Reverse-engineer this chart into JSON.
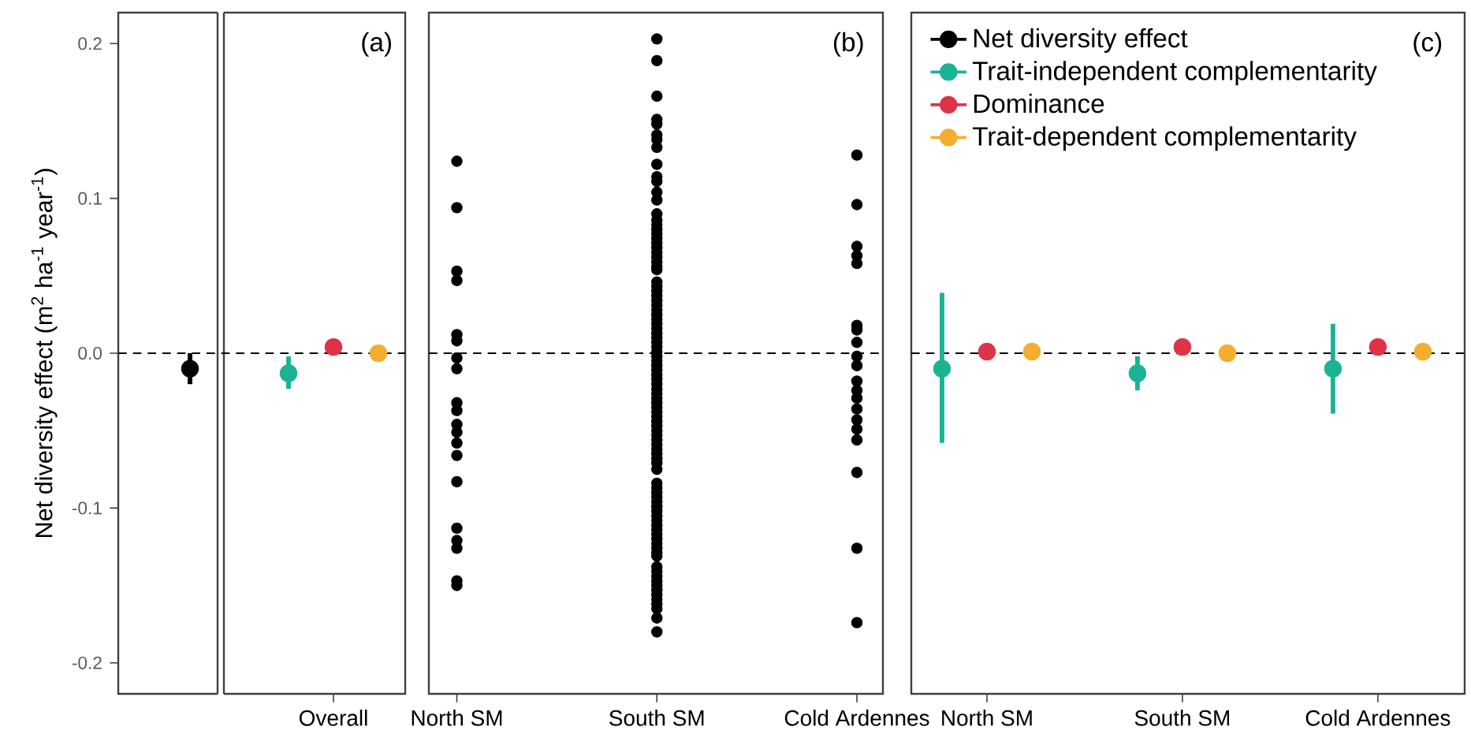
{
  "chart_data": [
    {
      "type": "scatter",
      "categories": [
        null,
        "Overall"
      ],
      "ylabel": "Net diversity effect (m$^{2}$ ha$^{-1}$ year$^{-1}$)",
      "ylim": [
        -0.22,
        0.22
      ],
      "yticks": [
        -0.2,
        -0.1,
        {
          "value": 0,
          "label": "0.0"
        },
        0.1,
        0.2
      ],
      "marker": "circle",
      "grid": false,
      "annotations": [
        "(a)"
      ],
      "ref_lines": [
        {
          "axis": "y",
          "value": 0,
          "line_style": "dashed",
          "color": "#000000"
        }
      ],
      "series": [
        {
          "color": "#000000",
          "values": [
            -0.01,
            null
          ],
          "errors": [
            [
              -0.02,
              0.0
            ],
            null
          ]
        },
        {
          "color": "#1ab394",
          "values": [
            null,
            -0.013
          ],
          "errors": [
            null,
            [
              -0.023,
              -0.002
            ]
          ]
        },
        {
          "color": "#e03347",
          "values": [
            null,
            0.004
          ]
        },
        {
          "color": "#f5ad2e",
          "values": [
            null,
            0.0
          ]
        }
      ]
    },
    {
      "type": "scatter",
      "categories": [
        "North SM",
        "South SM",
        "Cold Ardennes"
      ],
      "ylim": [
        -0.22,
        0.22
      ],
      "tick_labels": "x",
      "marker": "circle",
      "grid": false,
      "annotations": [
        "(b)"
      ],
      "ref_lines": [
        {
          "axis": "y",
          "value": 0,
          "line_style": "dashed",
          "color": "#000000"
        }
      ],
      "series": [
        {
          "color": "#000000",
          "x": [
            "North SM",
            "North SM",
            "North SM",
            "North SM",
            "North SM",
            "North SM",
            "North SM",
            "North SM",
            "North SM",
            "North SM",
            "North SM",
            "North SM",
            "North SM",
            "North SM",
            "North SM",
            "North SM",
            "North SM",
            "North SM",
            "North SM",
            "North SM"
          ],
          "values": [
            0.124,
            0.094,
            0.053,
            0.047,
            0.012,
            0.008,
            -0.003,
            -0.01,
            -0.032,
            -0.037,
            -0.046,
            -0.051,
            -0.058,
            -0.066,
            -0.083,
            -0.113,
            -0.121,
            -0.126,
            -0.147,
            -0.15
          ]
        },
        {
          "color": "#000000",
          "x": [
            "South SM",
            "South SM",
            "South SM",
            "South SM",
            "South SM",
            "South SM",
            "South SM",
            "South SM",
            "South SM",
            "South SM",
            "South SM",
            "South SM",
            "South SM",
            "South SM",
            "South SM",
            "South SM",
            "South SM",
            "South SM",
            "South SM",
            "South SM",
            "South SM",
            "South SM",
            "South SM",
            "South SM",
            "South SM",
            "South SM",
            "South SM",
            "South SM",
            "South SM",
            "South SM",
            "South SM",
            "South SM",
            "South SM",
            "South SM",
            "South SM",
            "South SM",
            "South SM",
            "South SM",
            "South SM",
            "South SM",
            "South SM",
            "South SM",
            "South SM",
            "South SM",
            "South SM",
            "South SM",
            "South SM",
            "South SM",
            "South SM",
            "South SM",
            "South SM",
            "South SM",
            "South SM",
            "South SM",
            "South SM",
            "South SM",
            "South SM",
            "South SM",
            "South SM",
            "South SM",
            "South SM",
            "South SM",
            "South SM",
            "South SM",
            "South SM",
            "South SM",
            "South SM",
            "South SM",
            "South SM",
            "South SM",
            "South SM",
            "South SM",
            "South SM",
            "South SM",
            "South SM",
            "South SM",
            "South SM",
            "South SM",
            "South SM",
            "South SM",
            "South SM",
            "South SM",
            "South SM",
            "South SM",
            "South SM",
            "South SM",
            "South SM",
            "South SM",
            "South SM",
            "South SM",
            "South SM",
            "South SM",
            "South SM",
            "South SM",
            "South SM",
            "South SM"
          ],
          "values": [
            0.203,
            0.189,
            0.166,
            0.151,
            0.148,
            0.141,
            0.138,
            0.133,
            0.122,
            0.114,
            0.111,
            0.104,
            0.099,
            0.09,
            0.086,
            0.083,
            0.08,
            0.077,
            0.074,
            0.071,
            0.068,
            0.065,
            0.062,
            0.059,
            0.056,
            0.054,
            0.046,
            0.043,
            0.04,
            0.037,
            0.034,
            0.031,
            0.028,
            0.025,
            0.022,
            0.019,
            0.016,
            0.013,
            0.01,
            0.007,
            0.004,
            0.001,
            -0.002,
            -0.005,
            -0.008,
            -0.011,
            -0.014,
            -0.017,
            -0.02,
            -0.023,
            -0.026,
            -0.029,
            -0.032,
            -0.035,
            -0.038,
            -0.041,
            -0.044,
            -0.047,
            -0.05,
            -0.053,
            -0.056,
            -0.059,
            -0.062,
            -0.065,
            -0.068,
            -0.071,
            -0.075,
            -0.084,
            -0.087,
            -0.09,
            -0.093,
            -0.096,
            -0.099,
            -0.102,
            -0.105,
            -0.108,
            -0.111,
            -0.114,
            -0.117,
            -0.12,
            -0.123,
            -0.126,
            -0.129,
            -0.131,
            -0.138,
            -0.141,
            -0.144,
            -0.147,
            -0.15,
            -0.153,
            -0.156,
            -0.159,
            -0.162,
            -0.165,
            -0.171,
            -0.18
          ]
        },
        {
          "color": "#000000",
          "x": [
            "Cold Ardennes",
            "Cold Ardennes",
            "Cold Ardennes",
            "Cold Ardennes",
            "Cold Ardennes",
            "Cold Ardennes",
            "Cold Ardennes",
            "Cold Ardennes",
            "Cold Ardennes",
            "Cold Ardennes",
            "Cold Ardennes",
            "Cold Ardennes",
            "Cold Ardennes",
            "Cold Ardennes",
            "Cold Ardennes",
            "Cold Ardennes",
            "Cold Ardennes",
            "Cold Ardennes",
            "Cold Ardennes",
            "Cold Ardennes",
            "Cold Ardennes"
          ],
          "values": [
            0.128,
            0.096,
            0.069,
            0.063,
            0.058,
            0.018,
            0.015,
            0.007,
            -0.002,
            -0.008,
            -0.018,
            -0.024,
            -0.029,
            -0.036,
            -0.043,
            -0.049,
            -0.056,
            null,
            -0.077,
            -0.126,
            -0.174
          ]
        }
      ]
    },
    {
      "type": "scatter",
      "categories": [
        "North SM",
        "South SM",
        "Cold Ardennes"
      ],
      "ylim": [
        -0.22,
        0.22
      ],
      "tick_labels": "x",
      "marker": "circle",
      "grid": false,
      "legend": "top left",
      "annotations": [
        "(c)"
      ],
      "ref_lines": [
        {
          "axis": "y",
          "value": 0,
          "line_style": "dashed",
          "color": "#000000"
        }
      ],
      "series": [
        {
          "name": "Net diversity effect",
          "color": "#000000",
          "values": [
            null,
            null,
            null
          ]
        },
        {
          "name": "Trait-independent complementarity",
          "color": "#1ab394",
          "values": [
            -0.01,
            -0.013,
            -0.01
          ],
          "errors": [
            [
              -0.058,
              0.039
            ],
            [
              -0.024,
              -0.002
            ],
            [
              -0.039,
              0.019
            ]
          ]
        },
        {
          "name": "Dominance",
          "color": "#e03347",
          "values": [
            0.001,
            0.004,
            0.004
          ]
        },
        {
          "name": "Trait-dependent complementarity",
          "color": "#f5ad2e",
          "values": [
            0.001,
            0.0,
            0.001
          ]
        }
      ]
    }
  ]
}
